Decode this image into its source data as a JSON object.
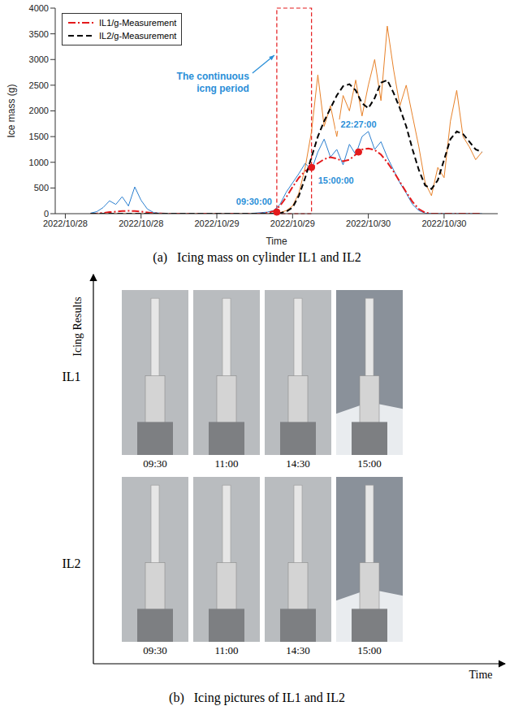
{
  "chart_data": {
    "type": "line",
    "title": "(a)   Icing mass on cylinder IL1 and IL2",
    "x_label": "Time",
    "y_label": "Ice mass (g)",
    "xlim": [
      -1.6,
      68.5
    ],
    "xticks": [
      {
        "value": 0,
        "label": "2022/10/28"
      },
      {
        "value": 12,
        "label": "2022/10/28"
      },
      {
        "value": 24,
        "label": "2022/10/29"
      },
      {
        "value": 36,
        "label": "2022/10/29"
      },
      {
        "value": 48,
        "label": "2022/10/30"
      },
      {
        "value": 60,
        "label": "2022/10/30"
      }
    ],
    "ylim": [
      0,
      4000
    ],
    "yticks": [
      0,
      500,
      1000,
      1500,
      2000,
      2500,
      3000,
      3500,
      4000
    ],
    "grid": false,
    "legend": "upper left",
    "x": [
      4,
      5,
      6,
      7,
      8,
      9,
      10,
      11,
      12,
      13,
      14,
      15,
      16,
      17,
      18,
      19,
      20,
      21,
      22,
      23,
      24,
      25,
      26,
      27,
      28,
      29,
      30,
      31,
      32,
      33,
      34,
      35,
      36,
      37,
      38,
      39,
      40,
      41,
      42,
      43,
      44,
      45,
      46,
      47,
      48,
      49,
      50,
      51,
      52,
      53,
      54,
      55,
      56,
      57,
      58,
      59,
      60,
      61,
      62,
      63,
      64,
      65,
      66
    ],
    "series": [
      {
        "color": "#2b7fd0",
        "line_style": "solid",
        "values": [
          10,
          40,
          120,
          250,
          180,
          330,
          150,
          520,
          260,
          90,
          20,
          10,
          5,
          0,
          0,
          5,
          0,
          0,
          0,
          0,
          0,
          5,
          0,
          0,
          0,
          5,
          10,
          20,
          30,
          60,
          180,
          420,
          600,
          780,
          980,
          850,
          1200,
          1450,
          1100,
          1250,
          950,
          1350,
          1150,
          1500,
          1600,
          1250,
          1400,
          1100,
          850,
          600,
          400,
          180,
          60,
          10,
          0,
          0,
          0,
          0,
          0,
          0,
          0,
          0,
          0
        ]
      },
      {
        "color": "#e8822a",
        "line_style": "solid",
        "values": [
          0,
          0,
          0,
          0,
          0,
          0,
          0,
          0,
          0,
          0,
          0,
          0,
          0,
          0,
          0,
          0,
          0,
          0,
          0,
          0,
          0,
          0,
          0,
          0,
          0,
          0,
          0,
          0,
          0,
          10,
          20,
          60,
          150,
          400,
          900,
          1600,
          2700,
          1700,
          2100,
          1500,
          2300,
          2000,
          2600,
          1900,
          2500,
          3000,
          2200,
          3650,
          2800,
          2100,
          2500,
          1900,
          1300,
          600,
          350,
          900,
          700,
          1800,
          2400,
          1500,
          1300,
          1050,
          1200
        ]
      },
      {
        "name": "IL1/g-Measurement",
        "color": "#e41a1c",
        "line_style": "dashdot",
        "values": [
          0,
          5,
          15,
          30,
          40,
          50,
          55,
          50,
          40,
          25,
          10,
          5,
          0,
          0,
          0,
          0,
          0,
          0,
          0,
          0,
          0,
          0,
          0,
          0,
          0,
          0,
          0,
          5,
          15,
          50,
          150,
          320,
          520,
          700,
          830,
          900,
          980,
          1060,
          1100,
          1070,
          1020,
          1050,
          1150,
          1250,
          1270,
          1240,
          1150,
          1000,
          820,
          620,
          420,
          230,
          90,
          20,
          0,
          0,
          0,
          0,
          0,
          0,
          0,
          0,
          0
        ]
      },
      {
        "name": "IL2/g-Measurement",
        "color": "#000000",
        "line_style": "dashed",
        "values": [
          0,
          0,
          0,
          0,
          0,
          0,
          0,
          0,
          0,
          0,
          0,
          0,
          0,
          0,
          0,
          0,
          0,
          0,
          0,
          0,
          0,
          0,
          0,
          0,
          0,
          0,
          0,
          0,
          0,
          0,
          10,
          40,
          120,
          350,
          700,
          1100,
          1500,
          1800,
          2050,
          2300,
          2480,
          2520,
          2400,
          2150,
          2050,
          2250,
          2550,
          2600,
          2350,
          2050,
          1700,
          1250,
          850,
          550,
          480,
          650,
          1050,
          1450,
          1600,
          1550,
          1400,
          1250,
          1200
        ]
      }
    ],
    "highlight": {
      "text": "The continuous icng period",
      "x": [
        33.5,
        39
      ],
      "y": [
        0,
        4000
      ]
    },
    "annotations": [
      {
        "text": "09:30:00",
        "x": 33.5,
        "y": 30
      },
      {
        "text": "15:00:00",
        "x": 39,
        "y": 900
      },
      {
        "text": "22:27:00",
        "x": 46.45,
        "y": 1200
      }
    ]
  },
  "photo_grid": {
    "title": "(b)   Icing pictures of IL1 and IL2",
    "y_label": "Icing Results",
    "x_label": "Time",
    "rows": [
      "IL1",
      "IL2"
    ],
    "times": [
      "09:30",
      "11:00",
      "14:30",
      "15:00"
    ]
  }
}
